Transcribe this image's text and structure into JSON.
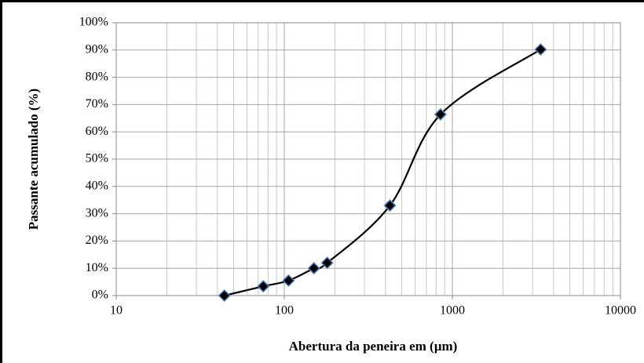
{
  "chart_data": {
    "type": "line",
    "x_label": "Abertura da peneira em (µm)",
    "y_label": "Passante acumulado (%)",
    "x": [
      44,
      75,
      106,
      150,
      180,
      425,
      850,
      3350
    ],
    "series": [
      {
        "name": "Passante acumulado",
        "color": "#000000",
        "marker_color": "#4f81bd",
        "values": [
          0,
          3.4,
          5.5,
          10,
          12,
          33,
          66.4,
          90.2
        ]
      }
    ],
    "xlim": [
      10,
      10000
    ],
    "xticks": [
      10,
      100,
      1000,
      10000
    ],
    "xminor": [
      20,
      30,
      40,
      50,
      60,
      70,
      80,
      90,
      200,
      300,
      400,
      500,
      600,
      700,
      800,
      900,
      2000,
      3000,
      4000,
      5000,
      6000,
      7000,
      8000,
      9000
    ],
    "xscale": "log",
    "ylim": [
      0,
      100
    ],
    "yticks": [
      {
        "value": 0,
        "label": "0%"
      },
      {
        "value": 10,
        "label": "10%"
      },
      {
        "value": 20,
        "label": "20%"
      },
      {
        "value": 30,
        "label": "30%"
      },
      {
        "value": 40,
        "label": "40%"
      },
      {
        "value": 50,
        "label": "50%"
      },
      {
        "value": 60,
        "label": "60%"
      },
      {
        "value": 70,
        "label": "70%"
      },
      {
        "value": 80,
        "label": "80%"
      },
      {
        "value": 90,
        "label": "90%"
      },
      {
        "value": 100,
        "label": "100%"
      }
    ],
    "grid": true,
    "smooth": true
  }
}
